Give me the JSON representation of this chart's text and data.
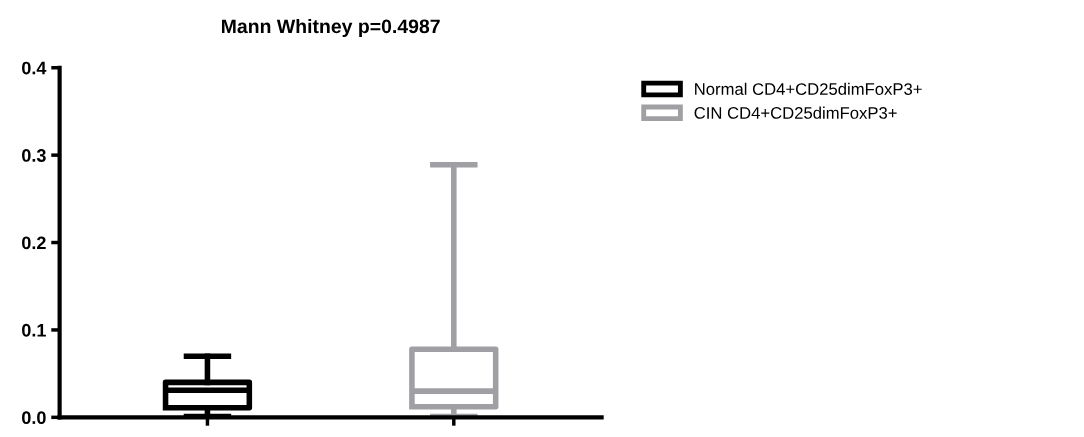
{
  "chart_data": {
    "type": "box",
    "title": "Mann Whitney p=0.4987",
    "categories": [
      null,
      null
    ],
    "series": [
      {
        "name": "Normal CD4+CD25dimFoxP3+",
        "color": "#000000",
        "boxes": [
          {
            "low": 0.001,
            "q1": 0.011,
            "median": 0.031,
            "q3": 0.04,
            "high": 0.07
          },
          null
        ]
      },
      {
        "name": "CIN CD4+CD25dimFoxP3+",
        "color": "#a0a0a4",
        "boxes": [
          null,
          {
            "low": 0.001,
            "q1": 0.012,
            "median": 0.03,
            "q3": 0.078,
            "high": 0.289
          }
        ]
      }
    ],
    "ylim": [
      0,
      0.4
    ],
    "yticks": [
      {
        "value": 0,
        "label": "0.0"
      },
      {
        "value": 0.1,
        "label": "0.1"
      },
      {
        "value": 0.2,
        "label": "0.2"
      },
      {
        "value": 0.3,
        "label": "0.3"
      },
      {
        "value": 0.4,
        "label": "0.4"
      }
    ],
    "tick_labels": "y",
    "grid": false,
    "legend": "top right"
  }
}
